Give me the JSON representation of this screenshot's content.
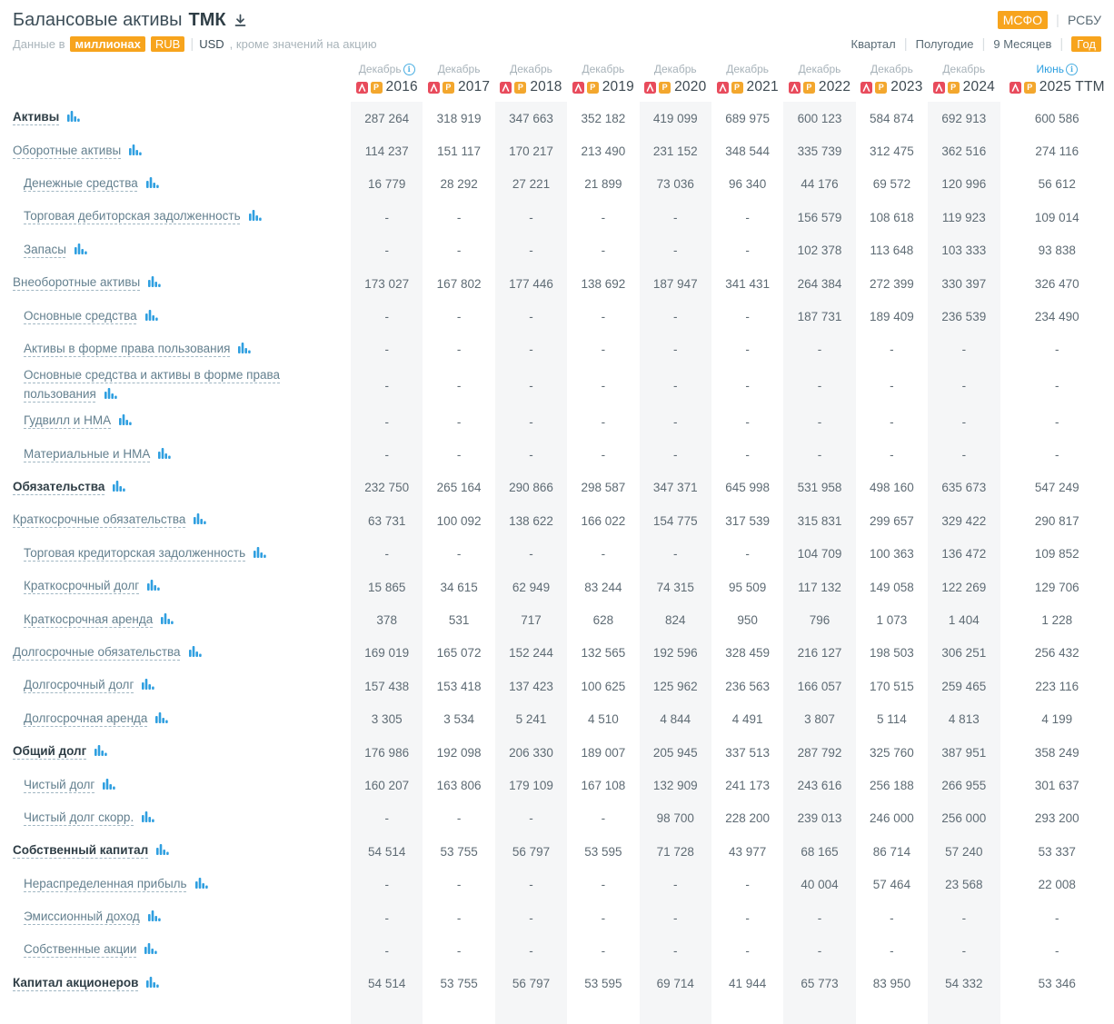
{
  "header": {
    "title": "Балансовые активы",
    "ticker": "ТМК",
    "standards": [
      {
        "label": "МСФО",
        "active": true
      },
      {
        "label": "РСБУ",
        "active": false
      }
    ],
    "subtitle": {
      "prefix": "Данные в",
      "unit": "миллионах",
      "currency_active": "RUB",
      "currency_inactive": "USD",
      "suffix": ", кроме значений на акцию"
    },
    "periods": [
      {
        "label": "Квартал",
        "active": false
      },
      {
        "label": "Полугодие",
        "active": false
      },
      {
        "label": "9 Месяцев",
        "active": false
      },
      {
        "label": "Год",
        "active": true
      }
    ]
  },
  "icons": {
    "download": "download-icon",
    "info": "info-icon",
    "pdf": "pdf-report-icon",
    "p_report": "p-report-icon",
    "bar_chart": "bar-chart-icon"
  },
  "colors": {
    "accent_orange": "#f7a41d",
    "pdf_red": "#e84b5c",
    "p_orange": "#f3a72e",
    "chart_blue": "#2f9fe0",
    "info_blue": "#49aee2",
    "stripe_gray": "#f5f6f7",
    "label_blue_gray": "#64808f",
    "bold_dark": "#2f3e46"
  },
  "chart_data": {
    "type": "table",
    "title": "Балансовые активы ТМК",
    "columns": [
      {
        "month": "Декабрь",
        "year": "2016",
        "info": true,
        "highlight_month": false
      },
      {
        "month": "Декабрь",
        "year": "2017",
        "info": false,
        "highlight_month": false
      },
      {
        "month": "Декабрь",
        "year": "2018",
        "info": false,
        "highlight_month": false
      },
      {
        "month": "Декабрь",
        "year": "2019",
        "info": false,
        "highlight_month": false
      },
      {
        "month": "Декабрь",
        "year": "2020",
        "info": false,
        "highlight_month": false
      },
      {
        "month": "Декабрь",
        "year": "2021",
        "info": false,
        "highlight_month": false
      },
      {
        "month": "Декабрь",
        "year": "2022",
        "info": false,
        "highlight_month": false
      },
      {
        "month": "Декабрь",
        "year": "2023",
        "info": false,
        "highlight_month": false
      },
      {
        "month": "Декабрь",
        "year": "2024",
        "info": false,
        "highlight_month": false
      },
      {
        "month": "Июнь",
        "year": "2025 TTM",
        "info": true,
        "highlight_month": true
      }
    ],
    "rows": [
      {
        "label": "Активы",
        "bold": true,
        "indent": 0,
        "values": [
          "287 264",
          "318 919",
          "347 663",
          "352 182",
          "419 099",
          "689 975",
          "600 123",
          "584 874",
          "692 913",
          "600 586"
        ]
      },
      {
        "label": "Оборотные активы",
        "bold": false,
        "indent": 0,
        "values": [
          "114 237",
          "151 117",
          "170 217",
          "213 490",
          "231 152",
          "348 544",
          "335 739",
          "312 475",
          "362 516",
          "274 116"
        ]
      },
      {
        "label": "Денежные средства",
        "bold": false,
        "indent": 1,
        "values": [
          "16 779",
          "28 292",
          "27 221",
          "21 899",
          "73 036",
          "96 340",
          "44 176",
          "69 572",
          "120 996",
          "56 612"
        ]
      },
      {
        "label": "Торговая дебиторская задолженность",
        "bold": false,
        "indent": 1,
        "values": [
          "-",
          "-",
          "-",
          "-",
          "-",
          "-",
          "156 579",
          "108 618",
          "119 923",
          "109 014"
        ]
      },
      {
        "label": "Запасы",
        "bold": false,
        "indent": 1,
        "values": [
          "-",
          "-",
          "-",
          "-",
          "-",
          "-",
          "102 378",
          "113 648",
          "103 333",
          "93 838"
        ]
      },
      {
        "label": "Внеоборотные активы",
        "bold": false,
        "indent": 0,
        "values": [
          "173 027",
          "167 802",
          "177 446",
          "138 692",
          "187 947",
          "341 431",
          "264 384",
          "272 399",
          "330 397",
          "326 470"
        ]
      },
      {
        "label": "Основные средства",
        "bold": false,
        "indent": 1,
        "values": [
          "-",
          "-",
          "-",
          "-",
          "-",
          "-",
          "187 731",
          "189 409",
          "236 539",
          "234 490"
        ]
      },
      {
        "label": "Активы в форме права пользования",
        "bold": false,
        "indent": 1,
        "values": [
          "-",
          "-",
          "-",
          "-",
          "-",
          "-",
          "-",
          "-",
          "-",
          "-"
        ]
      },
      {
        "label": "Основные средства и активы в форме права пользования",
        "bold": false,
        "indent": 1,
        "values": [
          "-",
          "-",
          "-",
          "-",
          "-",
          "-",
          "-",
          "-",
          "-",
          "-"
        ]
      },
      {
        "label": "Гудвилл и НМА",
        "bold": false,
        "indent": 1,
        "values": [
          "-",
          "-",
          "-",
          "-",
          "-",
          "-",
          "-",
          "-",
          "-",
          "-"
        ]
      },
      {
        "label": "Материальные и НМА",
        "bold": false,
        "indent": 1,
        "values": [
          "-",
          "-",
          "-",
          "-",
          "-",
          "-",
          "-",
          "-",
          "-",
          "-"
        ]
      },
      {
        "label": "Обязательства",
        "bold": true,
        "indent": 0,
        "values": [
          "232 750",
          "265 164",
          "290 866",
          "298 587",
          "347 371",
          "645 998",
          "531 958",
          "498 160",
          "635 673",
          "547 249"
        ]
      },
      {
        "label": "Краткосрочные обязательства",
        "bold": false,
        "indent": 0,
        "values": [
          "63 731",
          "100 092",
          "138 622",
          "166 022",
          "154 775",
          "317 539",
          "315 831",
          "299 657",
          "329 422",
          "290 817"
        ]
      },
      {
        "label": "Торговая кредиторская задолженность",
        "bold": false,
        "indent": 1,
        "values": [
          "-",
          "-",
          "-",
          "-",
          "-",
          "-",
          "104 709",
          "100 363",
          "136 472",
          "109 852"
        ]
      },
      {
        "label": "Краткосрочный долг",
        "bold": false,
        "indent": 1,
        "values": [
          "15 865",
          "34 615",
          "62 949",
          "83 244",
          "74 315",
          "95 509",
          "117 132",
          "149 058",
          "122 269",
          "129 706"
        ]
      },
      {
        "label": "Краткосрочная аренда",
        "bold": false,
        "indent": 1,
        "values": [
          "378",
          "531",
          "717",
          "628",
          "824",
          "950",
          "796",
          "1 073",
          "1 404",
          "1 228"
        ]
      },
      {
        "label": "Долгосрочные обязательства",
        "bold": false,
        "indent": 0,
        "values": [
          "169 019",
          "165 072",
          "152 244",
          "132 565",
          "192 596",
          "328 459",
          "216 127",
          "198 503",
          "306 251",
          "256 432"
        ]
      },
      {
        "label": "Долгосрочный долг",
        "bold": false,
        "indent": 1,
        "values": [
          "157 438",
          "153 418",
          "137 423",
          "100 625",
          "125 962",
          "236 563",
          "166 057",
          "170 515",
          "259 465",
          "223 116"
        ]
      },
      {
        "label": "Долгосрочная аренда",
        "bold": false,
        "indent": 1,
        "values": [
          "3 305",
          "3 534",
          "5 241",
          "4 510",
          "4 844",
          "4 491",
          "3 807",
          "5 114",
          "4 813",
          "4 199"
        ]
      },
      {
        "label": "Общий долг",
        "bold": true,
        "indent": 0,
        "values": [
          "176 986",
          "192 098",
          "206 330",
          "189 007",
          "205 945",
          "337 513",
          "287 792",
          "325 760",
          "387 951",
          "358 249"
        ]
      },
      {
        "label": "Чистый долг",
        "bold": false,
        "indent": 1,
        "values": [
          "160 207",
          "163 806",
          "179 109",
          "167 108",
          "132 909",
          "241 173",
          "243 616",
          "256 188",
          "266 955",
          "301 637"
        ]
      },
      {
        "label": "Чистый долг скорр.",
        "bold": false,
        "indent": 1,
        "values": [
          "-",
          "-",
          "-",
          "-",
          "98 700",
          "228 200",
          "239 013",
          "246 000",
          "256 000",
          "293 200"
        ]
      },
      {
        "label": "Собственный капитал",
        "bold": true,
        "indent": 0,
        "values": [
          "54 514",
          "53 755",
          "56 797",
          "53 595",
          "71 728",
          "43 977",
          "68 165",
          "86 714",
          "57 240",
          "53 337"
        ]
      },
      {
        "label": "Нераспределенная прибыль",
        "bold": false,
        "indent": 1,
        "values": [
          "-",
          "-",
          "-",
          "-",
          "-",
          "-",
          "40 004",
          "57 464",
          "23 568",
          "22 008"
        ]
      },
      {
        "label": "Эмиссионный доход",
        "bold": false,
        "indent": 1,
        "values": [
          "-",
          "-",
          "-",
          "-",
          "-",
          "-",
          "-",
          "-",
          "-",
          "-"
        ]
      },
      {
        "label": "Собственные акции",
        "bold": false,
        "indent": 1,
        "values": [
          "-",
          "-",
          "-",
          "-",
          "-",
          "-",
          "-",
          "-",
          "-",
          "-"
        ]
      },
      {
        "label": "Капитал акционеров",
        "bold": true,
        "indent": 0,
        "values": [
          "54 514",
          "53 755",
          "56 797",
          "53 595",
          "69 714",
          "41 944",
          "65 773",
          "83 950",
          "54 332",
          "53 346"
        ]
      }
    ]
  }
}
